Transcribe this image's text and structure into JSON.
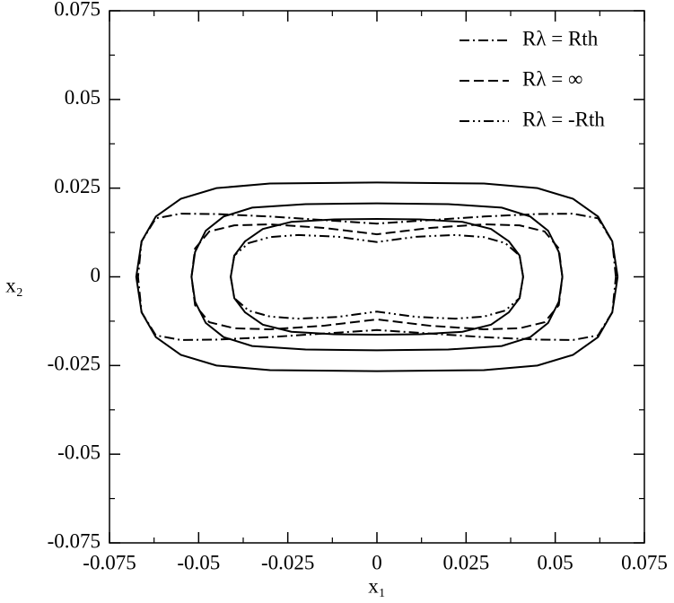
{
  "chart_data": {
    "type": "line",
    "xlabel": "x₁",
    "ylabel": "x₂",
    "xlim": [
      -0.075,
      0.075
    ],
    "ylim": [
      -0.075,
      0.075
    ],
    "xticks": [
      -0.075,
      -0.05,
      -0.025,
      0,
      0.025,
      0.05,
      0.075
    ],
    "yticks": [
      -0.075,
      -0.05,
      -0.025,
      0,
      0.025,
      0.05,
      0.075
    ],
    "minor_ticks": [
      -0.0625,
      -0.0375,
      -0.0125,
      0.0125,
      0.0375,
      0.0625
    ],
    "legend": "upper-right",
    "series": [
      {
        "color": "#000000",
        "style": "solid",
        "x": [
          0.0675,
          0.066,
          0.062,
          0.055,
          0.045,
          0.03,
          0,
          -0.03,
          -0.045,
          -0.055,
          -0.062,
          -0.066,
          -0.0675,
          -0.066,
          -0.062,
          -0.055,
          -0.045,
          -0.03,
          0,
          0.03,
          0.045,
          0.055,
          0.062,
          0.066,
          0.0675
        ],
        "values": [
          0,
          0.01,
          0.017,
          0.022,
          0.025,
          0.0263,
          0.0266,
          0.0263,
          0.025,
          0.022,
          0.017,
          0.01,
          0,
          -0.01,
          -0.017,
          -0.022,
          -0.025,
          -0.0263,
          -0.0266,
          -0.0263,
          -0.025,
          -0.022,
          -0.017,
          -0.01,
          0
        ]
      },
      {
        "color": "#000000",
        "style": "solid",
        "x": [
          0.052,
          0.051,
          0.048,
          0.043,
          0.035,
          0.02,
          0,
          -0.02,
          -0.035,
          -0.043,
          -0.048,
          -0.051,
          -0.052,
          -0.051,
          -0.048,
          -0.043,
          -0.035,
          -0.02,
          0,
          0.02,
          0.035,
          0.043,
          0.048,
          0.051,
          0.052
        ],
        "values": [
          0,
          0.007,
          0.013,
          0.017,
          0.0195,
          0.0205,
          0.0207,
          0.0205,
          0.0195,
          0.017,
          0.013,
          0.007,
          0,
          -0.007,
          -0.013,
          -0.017,
          -0.0195,
          -0.0205,
          -0.0207,
          -0.0205,
          -0.0195,
          -0.017,
          -0.013,
          -0.007,
          0
        ]
      },
      {
        "color": "#000000",
        "style": "solid",
        "x": [
          0.041,
          0.04,
          0.037,
          0.032,
          0.024,
          0.012,
          0,
          -0.012,
          -0.024,
          -0.032,
          -0.037,
          -0.04,
          -0.041,
          -0.04,
          -0.037,
          -0.032,
          -0.024,
          -0.012,
          0,
          0.012,
          0.024,
          0.032,
          0.037,
          0.04,
          0.041
        ],
        "values": [
          0,
          0.006,
          0.01,
          0.0135,
          0.0155,
          0.0162,
          0.0163,
          0.0162,
          0.0155,
          0.0135,
          0.01,
          0.006,
          0,
          -0.006,
          -0.01,
          -0.0135,
          -0.0155,
          -0.0162,
          -0.0163,
          -0.0162,
          -0.0155,
          -0.0135,
          -0.01,
          -0.006,
          0
        ]
      },
      {
        "name": "Rλ = Rth",
        "color": "#000000",
        "style": "dash-dot",
        "x": [
          0.067,
          0.066,
          0.062,
          0.055,
          0.045,
          0.03,
          0,
          -0.03,
          -0.045,
          -0.055,
          -0.062,
          -0.066,
          -0.067,
          -0.066,
          -0.062,
          -0.055,
          -0.045,
          -0.03,
          0,
          0.03,
          0.045,
          0.055,
          0.062,
          0.066,
          0.067
        ],
        "values": [
          0,
          0.01,
          0.0165,
          0.0178,
          0.0177,
          0.017,
          0.015,
          0.017,
          0.0177,
          0.0178,
          0.0165,
          0.01,
          0,
          -0.01,
          -0.0165,
          -0.0178,
          -0.0177,
          -0.017,
          -0.015,
          -0.017,
          -0.0177,
          -0.0178,
          -0.0165,
          -0.01,
          0
        ]
      },
      {
        "name": "Rλ = ∞",
        "color": "#000000",
        "style": "dashed",
        "x": [
          0.052,
          0.051,
          0.047,
          0.04,
          0.03,
          0.015,
          0,
          -0.015,
          -0.03,
          -0.04,
          -0.047,
          -0.051,
          -0.052,
          -0.051,
          -0.047,
          -0.04,
          -0.03,
          -0.015,
          0,
          0.015,
          0.03,
          0.04,
          0.047,
          0.051,
          0.052
        ],
        "values": [
          0,
          0.008,
          0.0128,
          0.0145,
          0.0148,
          0.0138,
          0.012,
          0.0138,
          0.0148,
          0.0145,
          0.0128,
          0.008,
          0,
          -0.008,
          -0.0128,
          -0.0145,
          -0.0148,
          -0.0138,
          -0.012,
          -0.0138,
          -0.0148,
          -0.0145,
          -0.0128,
          -0.008,
          0
        ]
      },
      {
        "name": "Rλ = -Rth",
        "color": "#000000",
        "style": "dash-dot-dot",
        "x": [
          0.041,
          0.04,
          0.036,
          0.03,
          0.022,
          0.011,
          0,
          -0.011,
          -0.022,
          -0.03,
          -0.036,
          -0.04,
          -0.041,
          -0.04,
          -0.036,
          -0.03,
          -0.022,
          -0.011,
          0,
          0.011,
          0.022,
          0.03,
          0.036,
          0.04,
          0.041
        ],
        "values": [
          0,
          0.006,
          0.0095,
          0.0112,
          0.0118,
          0.0113,
          0.0098,
          0.0113,
          0.0118,
          0.0112,
          0.0095,
          0.006,
          0,
          -0.006,
          -0.0095,
          -0.0112,
          -0.0118,
          -0.0113,
          -0.0098,
          -0.0113,
          -0.0118,
          -0.0112,
          -0.0095,
          -0.006,
          0
        ]
      }
    ]
  }
}
